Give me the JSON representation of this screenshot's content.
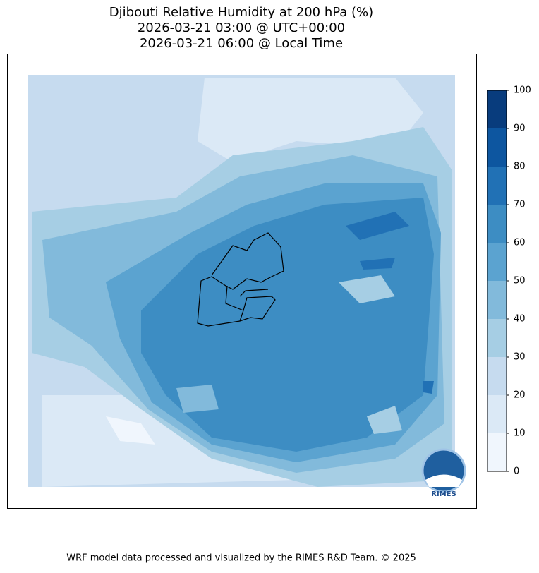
{
  "title": [
    "Djibouti Relative Humidity at 200 hPa (%)",
    "2026-03-21 03:00 @ UTC+00:00",
    "2026-03-21 06:00 @ Local Time"
  ],
  "colorbar": {
    "ticks": [
      0,
      10,
      20,
      30,
      40,
      50,
      60,
      70,
      80,
      90,
      100
    ],
    "colors": [
      "#f0f6fd",
      "#dbe9f6",
      "#c6dbef",
      "#a6cee4",
      "#82badb",
      "#5ba3d0",
      "#3d8dc3",
      "#2171b5",
      "#0d56a0",
      "#083c7d"
    ]
  },
  "logo": "RIMES",
  "footer": "WRF model data processed and visualized by the RIMES R&D Team. © 2025"
}
